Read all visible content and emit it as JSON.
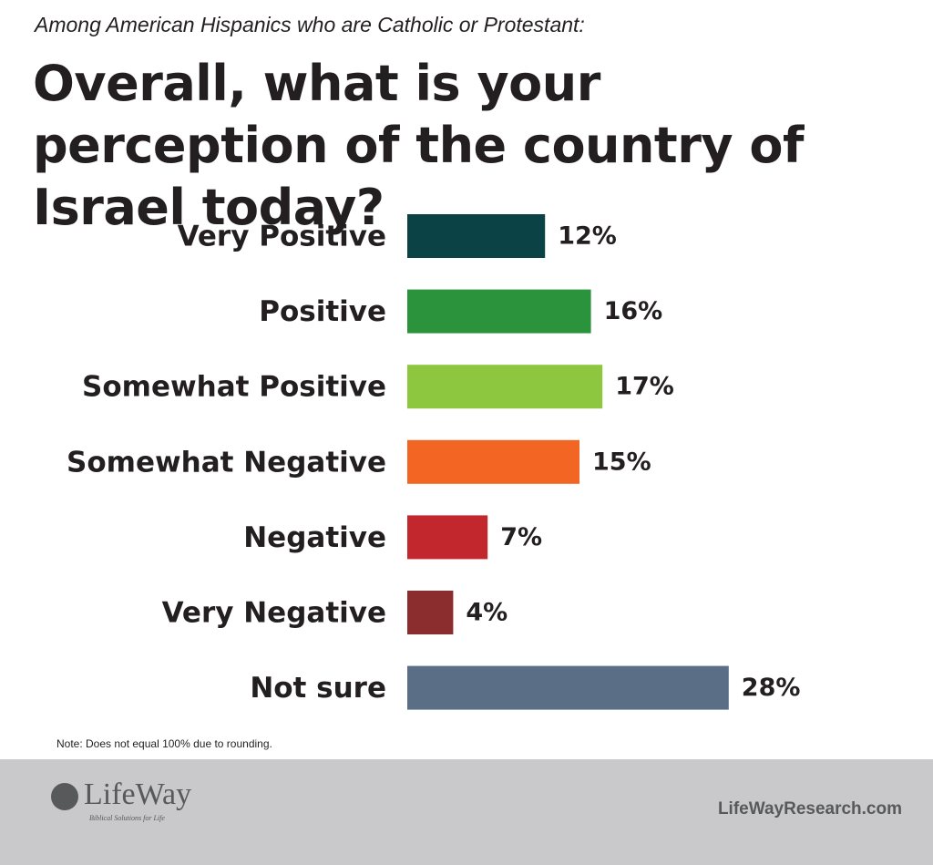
{
  "chart_data": {
    "type": "hbar",
    "subtitle": "Among American Hispanics who are Catholic or Protestant:",
    "title": "Overall, what is your perception of the country of Israel today?",
    "categories": [
      "Very Positive",
      "Positive",
      "Somewhat Positive",
      "Somewhat Negative",
      "Negative",
      "Very Negative",
      "Not sure"
    ],
    "values": [
      12,
      16,
      17,
      15,
      7,
      4,
      28
    ],
    "value_labels": [
      "12%",
      "16%",
      "17%",
      "15%",
      "7%",
      "4%",
      "28%"
    ],
    "colors": [
      "#0b4245",
      "#2a933c",
      "#8dc63f",
      "#f26522",
      "#c1272d",
      "#8b2c2f",
      "#5a6e85"
    ],
    "note": "Note: Does not equal 100% due to rounding."
  },
  "footer": {
    "logo": "LifeWay",
    "tagline": "Biblical Solutions for Life",
    "url": "LifeWayResearch.com"
  }
}
